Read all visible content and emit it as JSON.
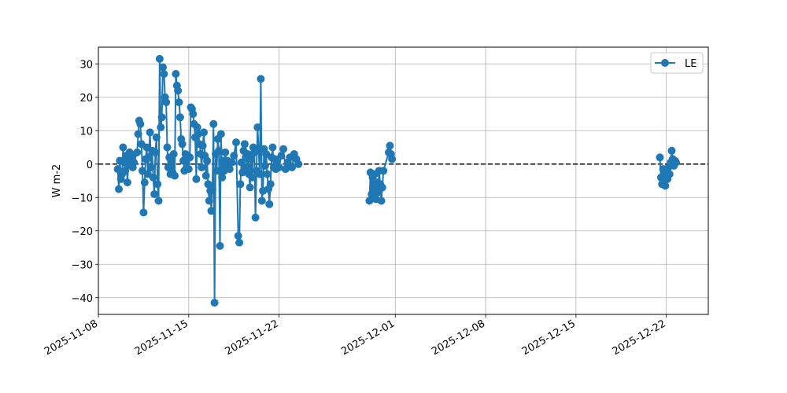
{
  "chart_data": {
    "type": "line",
    "title": "",
    "xlabel": "",
    "ylabel": "W m-2",
    "xlim": [
      "2025-11-08T00:00",
      "2025-12-25T06:00"
    ],
    "ylim": [
      -45,
      35
    ],
    "x_ticks": [
      "2025-11-08",
      "2025-11-15",
      "2025-11-22",
      "2025-12-01",
      "2025-12-08",
      "2025-12-15",
      "2025-12-22"
    ],
    "y_ticks": [
      30,
      20,
      10,
      0,
      -10,
      -20,
      -30,
      -40
    ],
    "y_tick_labels": [
      "30",
      "20",
      "10",
      "0",
      "−10",
      "−20",
      "−30",
      "−40"
    ],
    "grid": true,
    "legend_position": "top-right",
    "reference_line": {
      "y": 0,
      "style": "dashed",
      "color": "#000000"
    },
    "colors": {
      "series": "#1f77b4"
    },
    "series": [
      {
        "name": "LE",
        "points": [
          [
            "2025-11-09T12:00",
            -1.5
          ],
          [
            "2025-11-09T14:00",
            -7.5
          ],
          [
            "2025-11-09T16:00",
            1.0
          ],
          [
            "2025-11-09T18:00",
            -4.5
          ],
          [
            "2025-11-09T20:00",
            -3.0
          ],
          [
            "2025-11-09T22:00",
            5.0
          ],
          [
            "2025-11-10T00:00",
            0.5
          ],
          [
            "2025-11-10T02:00",
            -2.0
          ],
          [
            "2025-11-10T04:00",
            2.5
          ],
          [
            "2025-11-10T06:00",
            -5.5
          ],
          [
            "2025-11-10T08:00",
            1.5
          ],
          [
            "2025-11-10T10:00",
            3.5
          ],
          [
            "2025-11-10T12:00",
            -0.5
          ],
          [
            "2025-11-10T14:00",
            2.0
          ],
          [
            "2025-11-10T16:00",
            -1.0
          ],
          [
            "2025-11-10T18:00",
            0.5
          ],
          [
            "2025-11-11T00:00",
            3.5
          ],
          [
            "2025-11-11T02:00",
            9.0
          ],
          [
            "2025-11-11T04:00",
            13.0
          ],
          [
            "2025-11-11T06:00",
            12.0
          ],
          [
            "2025-11-11T08:00",
            6.0
          ],
          [
            "2025-11-11T10:00",
            -2.0
          ],
          [
            "2025-11-11T12:00",
            -14.5
          ],
          [
            "2025-11-11T14:00",
            -5.5
          ],
          [
            "2025-11-11T16:00",
            1.5
          ],
          [
            "2025-11-11T18:00",
            5.0
          ],
          [
            "2025-11-11T20:00",
            -3.0
          ],
          [
            "2025-11-11T22:00",
            2.0
          ],
          [
            "2025-11-12T00:00",
            9.5
          ],
          [
            "2025-11-12T02:00",
            -1.0
          ],
          [
            "2025-11-12T04:00",
            4.0
          ],
          [
            "2025-11-12T06:00",
            -4.0
          ],
          [
            "2025-11-12T08:00",
            -9.0
          ],
          [
            "2025-11-12T10:00",
            3.5
          ],
          [
            "2025-11-12T12:00",
            8.0
          ],
          [
            "2025-11-12T14:00",
            -6.0
          ],
          [
            "2025-11-12T16:00",
            -11.0
          ],
          [
            "2025-11-12T18:00",
            31.5
          ],
          [
            "2025-11-12T20:00",
            11.0
          ],
          [
            "2025-11-12T22:00",
            14.0
          ],
          [
            "2025-11-13T00:00",
            29.0
          ],
          [
            "2025-11-13T02:00",
            27.0
          ],
          [
            "2025-11-13T04:00",
            20.0
          ],
          [
            "2025-11-13T06:00",
            18.5
          ],
          [
            "2025-11-13T08:00",
            5.0
          ],
          [
            "2025-11-13T10:00",
            -1.0
          ],
          [
            "2025-11-13T12:00",
            2.0
          ],
          [
            "2025-11-13T14:00",
            -3.0
          ],
          [
            "2025-11-13T16:00",
            1.0
          ],
          [
            "2025-11-13T18:00",
            -2.5
          ],
          [
            "2025-11-13T20:00",
            3.0
          ],
          [
            "2025-11-13T22:00",
            -3.5
          ],
          [
            "2025-11-14T00:00",
            27.0
          ],
          [
            "2025-11-14T02:00",
            23.5
          ],
          [
            "2025-11-14T04:00",
            22.0
          ],
          [
            "2025-11-14T06:00",
            18.5
          ],
          [
            "2025-11-14T08:00",
            14.0
          ],
          [
            "2025-11-14T10:00",
            7.5
          ],
          [
            "2025-11-14T12:00",
            6.0
          ],
          [
            "2025-11-14T14:00",
            1.0
          ],
          [
            "2025-11-14T16:00",
            -2.0
          ],
          [
            "2025-11-14T18:00",
            3.0
          ],
          [
            "2025-11-14T20:00",
            -1.0
          ],
          [
            "2025-11-14T22:00",
            2.5
          ],
          [
            "2025-11-15T00:00",
            -1.5
          ],
          [
            "2025-11-15T02:00",
            2.0
          ],
          [
            "2025-11-15T04:00",
            17.0
          ],
          [
            "2025-11-15T06:00",
            16.5
          ],
          [
            "2025-11-15T08:00",
            15.0
          ],
          [
            "2025-11-15T10:00",
            12.0
          ],
          [
            "2025-11-15T12:00",
            8.0
          ],
          [
            "2025-11-15T14:00",
            -4.5
          ],
          [
            "2025-11-15T16:00",
            11.0
          ],
          [
            "2025-11-15T18:00",
            9.0
          ],
          [
            "2025-11-15T20:00",
            6.0
          ],
          [
            "2025-11-15T22:00",
            3.0
          ],
          [
            "2025-11-16T00:00",
            -1.0
          ],
          [
            "2025-11-16T02:00",
            5.5
          ],
          [
            "2025-11-16T04:00",
            9.5
          ],
          [
            "2025-11-16T06:00",
            2.5
          ],
          [
            "2025-11-16T08:00",
            -3.5
          ],
          [
            "2025-11-16T10:00",
            1.0
          ],
          [
            "2025-11-16T12:00",
            -6.0
          ],
          [
            "2025-11-16T14:00",
            -11.0
          ],
          [
            "2025-11-16T16:00",
            -8.0
          ],
          [
            "2025-11-16T18:00",
            -14.0
          ],
          [
            "2025-11-16T20:00",
            -7.5
          ],
          [
            "2025-11-16T22:00",
            12.0
          ],
          [
            "2025-11-17T00:00",
            -41.5
          ],
          [
            "2025-11-17T02:00",
            3.0
          ],
          [
            "2025-11-17T04:00",
            -2.0
          ],
          [
            "2025-11-17T06:00",
            7.5
          ],
          [
            "2025-11-17T08:00",
            4.0
          ],
          [
            "2025-11-17T10:00",
            -24.5
          ],
          [
            "2025-11-17T12:00",
            9.0
          ],
          [
            "2025-11-17T14:00",
            -4.0
          ],
          [
            "2025-11-17T16:00",
            1.0
          ],
          [
            "2025-11-17T18:00",
            -2.0
          ],
          [
            "2025-11-17T20:00",
            3.5
          ],
          [
            "2025-11-17T22:00",
            -0.5
          ],
          [
            "2025-11-18T00:00",
            1.0
          ],
          [
            "2025-11-18T04:00",
            -1.5
          ],
          [
            "2025-11-18T08:00",
            0.5
          ],
          [
            "2025-11-18T12:00",
            2.5
          ],
          [
            "2025-11-18T16:00",
            6.5
          ],
          [
            "2025-11-18T20:00",
            -21.5
          ],
          [
            "2025-11-18T22:00",
            -23.5
          ],
          [
            "2025-11-19T00:00",
            -6.0
          ],
          [
            "2025-11-19T02:00",
            0.5
          ],
          [
            "2025-11-19T04:00",
            -2.5
          ],
          [
            "2025-11-19T06:00",
            4.0
          ],
          [
            "2025-11-19T08:00",
            6.0
          ],
          [
            "2025-11-19T10:00",
            2.0
          ],
          [
            "2025-11-19T12:00",
            -1.0
          ],
          [
            "2025-11-19T14:00",
            3.0
          ],
          [
            "2025-11-19T16:00",
            -3.0
          ],
          [
            "2025-11-19T18:00",
            -7.0
          ],
          [
            "2025-11-19T20:00",
            1.5
          ],
          [
            "2025-11-19T22:00",
            -4.0
          ],
          [
            "2025-11-20T00:00",
            5.0
          ],
          [
            "2025-11-20T02:00",
            3.5
          ],
          [
            "2025-11-20T04:00",
            -16.0
          ],
          [
            "2025-11-20T06:00",
            -2.0
          ],
          [
            "2025-11-20T08:00",
            11.0
          ],
          [
            "2025-11-20T10:00",
            4.0
          ],
          [
            "2025-11-20T12:00",
            -3.0
          ],
          [
            "2025-11-20T14:00",
            25.5
          ],
          [
            "2025-11-20T16:00",
            -11.0
          ],
          [
            "2025-11-20T18:00",
            -8.0
          ],
          [
            "2025-11-20T20:00",
            4.5
          ],
          [
            "2025-11-20T22:00",
            -0.5
          ],
          [
            "2025-11-21T00:00",
            3.0
          ],
          [
            "2025-11-21T02:00",
            -3.0
          ],
          [
            "2025-11-21T04:00",
            -7.5
          ],
          [
            "2025-11-21T06:00",
            -12.0
          ],
          [
            "2025-11-21T08:00",
            -6.0
          ],
          [
            "2025-11-21T10:00",
            2.0
          ],
          [
            "2025-11-21T12:00",
            5.0
          ],
          [
            "2025-11-21T14:00",
            -1.0
          ],
          [
            "2025-11-21T16:00",
            1.5
          ],
          [
            "2025-11-21T18:00",
            -1.5
          ],
          [
            "2025-11-21T20:00",
            0.5
          ],
          [
            "2025-11-22T00:00",
            -1.0
          ],
          [
            "2025-11-22T04:00",
            2.5
          ],
          [
            "2025-11-22T08:00",
            4.5
          ],
          [
            "2025-11-22T12:00",
            -1.5
          ],
          [
            "2025-11-22T16:00",
            0.5
          ],
          [
            "2025-11-22T20:00",
            2.0
          ],
          [
            "2025-11-23T00:00",
            -1.0
          ],
          [
            "2025-11-23T04:00",
            3.0
          ],
          [
            "2025-11-23T08:00",
            1.5
          ],
          [
            "2025-11-23T12:00",
            0.0
          ],
          [
            "2025-11-29T00:00",
            -11.0
          ],
          [
            "2025-11-29T02:00",
            -2.5
          ],
          [
            "2025-11-29T04:00",
            -9.0
          ],
          [
            "2025-11-29T06:00",
            -4.0
          ],
          [
            "2025-11-29T08:00",
            -7.0
          ],
          [
            "2025-11-29T10:00",
            -3.0
          ],
          [
            "2025-11-29T12:00",
            -10.5
          ],
          [
            "2025-11-29T14:00",
            -5.5
          ],
          [
            "2025-11-29T16:00",
            -8.5
          ],
          [
            "2025-11-29T18:00",
            -2.0
          ],
          [
            "2025-11-29T20:00",
            -6.0
          ],
          [
            "2025-11-29T22:00",
            -11.0
          ],
          [
            "2025-11-30T00:00",
            -7.0
          ],
          [
            "2025-11-30T02:00",
            -2.0
          ],
          [
            "2025-11-30T12:00",
            3.5
          ],
          [
            "2025-11-30T14:00",
            5.5
          ],
          [
            "2025-11-30T16:00",
            3.0
          ],
          [
            "2025-11-30T18:00",
            1.5
          ],
          [
            "2025-12-21T12:00",
            2.0
          ],
          [
            "2025-12-21T14:00",
            -4.0
          ],
          [
            "2025-12-21T16:00",
            -6.0
          ],
          [
            "2025-12-21T18:00",
            -1.5
          ],
          [
            "2025-12-21T20:00",
            -3.0
          ],
          [
            "2025-12-21T22:00",
            -6.5
          ],
          [
            "2025-12-22T00:00",
            -2.0
          ],
          [
            "2025-12-22T02:00",
            -4.5
          ],
          [
            "2025-12-22T04:00",
            -1.0
          ],
          [
            "2025-12-22T06:00",
            -3.0
          ],
          [
            "2025-12-22T08:00",
            0.5
          ],
          [
            "2025-12-22T10:00",
            4.0
          ],
          [
            "2025-12-22T12:00",
            1.5
          ],
          [
            "2025-12-22T14:00",
            -0.5
          ],
          [
            "2025-12-22T16:00",
            1.0
          ],
          [
            "2025-12-22T18:00",
            0.5
          ]
        ]
      }
    ]
  }
}
